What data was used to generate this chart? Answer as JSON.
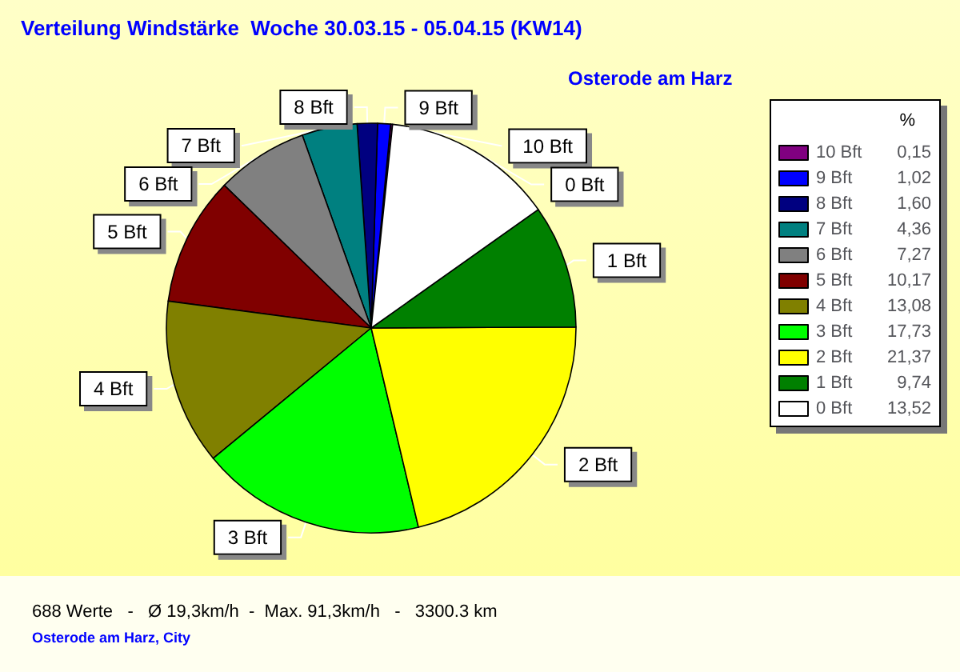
{
  "chart_data": {
    "type": "pie",
    "title": "Verteilung Windstärke  Woche 30.03.15 - 05.04.15 (KW14)",
    "subtitle": "Osterode am Harz",
    "legend_title": "%",
    "categories": [
      "10 Bft",
      "9 Bft",
      "8 Bft",
      "7 Bft",
      "6 Bft",
      "5 Bft",
      "4 Bft",
      "3 Bft",
      "2 Bft",
      "1 Bft",
      "0 Bft"
    ],
    "values": [
      0.15,
      1.02,
      1.6,
      4.36,
      7.27,
      10.17,
      13.08,
      17.73,
      21.37,
      9.74,
      13.52
    ],
    "value_labels": [
      "0,15",
      "1,02",
      "1,60",
      "4,36",
      "7,27",
      "10,17",
      "13,08",
      "17,73",
      "21,37",
      "9,74",
      "13,52"
    ],
    "colors": [
      "#800080",
      "#0000ff",
      "#000080",
      "#008080",
      "#808080",
      "#800000",
      "#808000",
      "#00ff00",
      "#ffff00",
      "#008000",
      "#ffffff"
    ],
    "legend": "right",
    "annotations": [
      "688 Werte   -   Ø 19,3km/h  -  Max. 91,3km/h   -   3300.3 km",
      "Osterode am Harz, City"
    ]
  }
}
